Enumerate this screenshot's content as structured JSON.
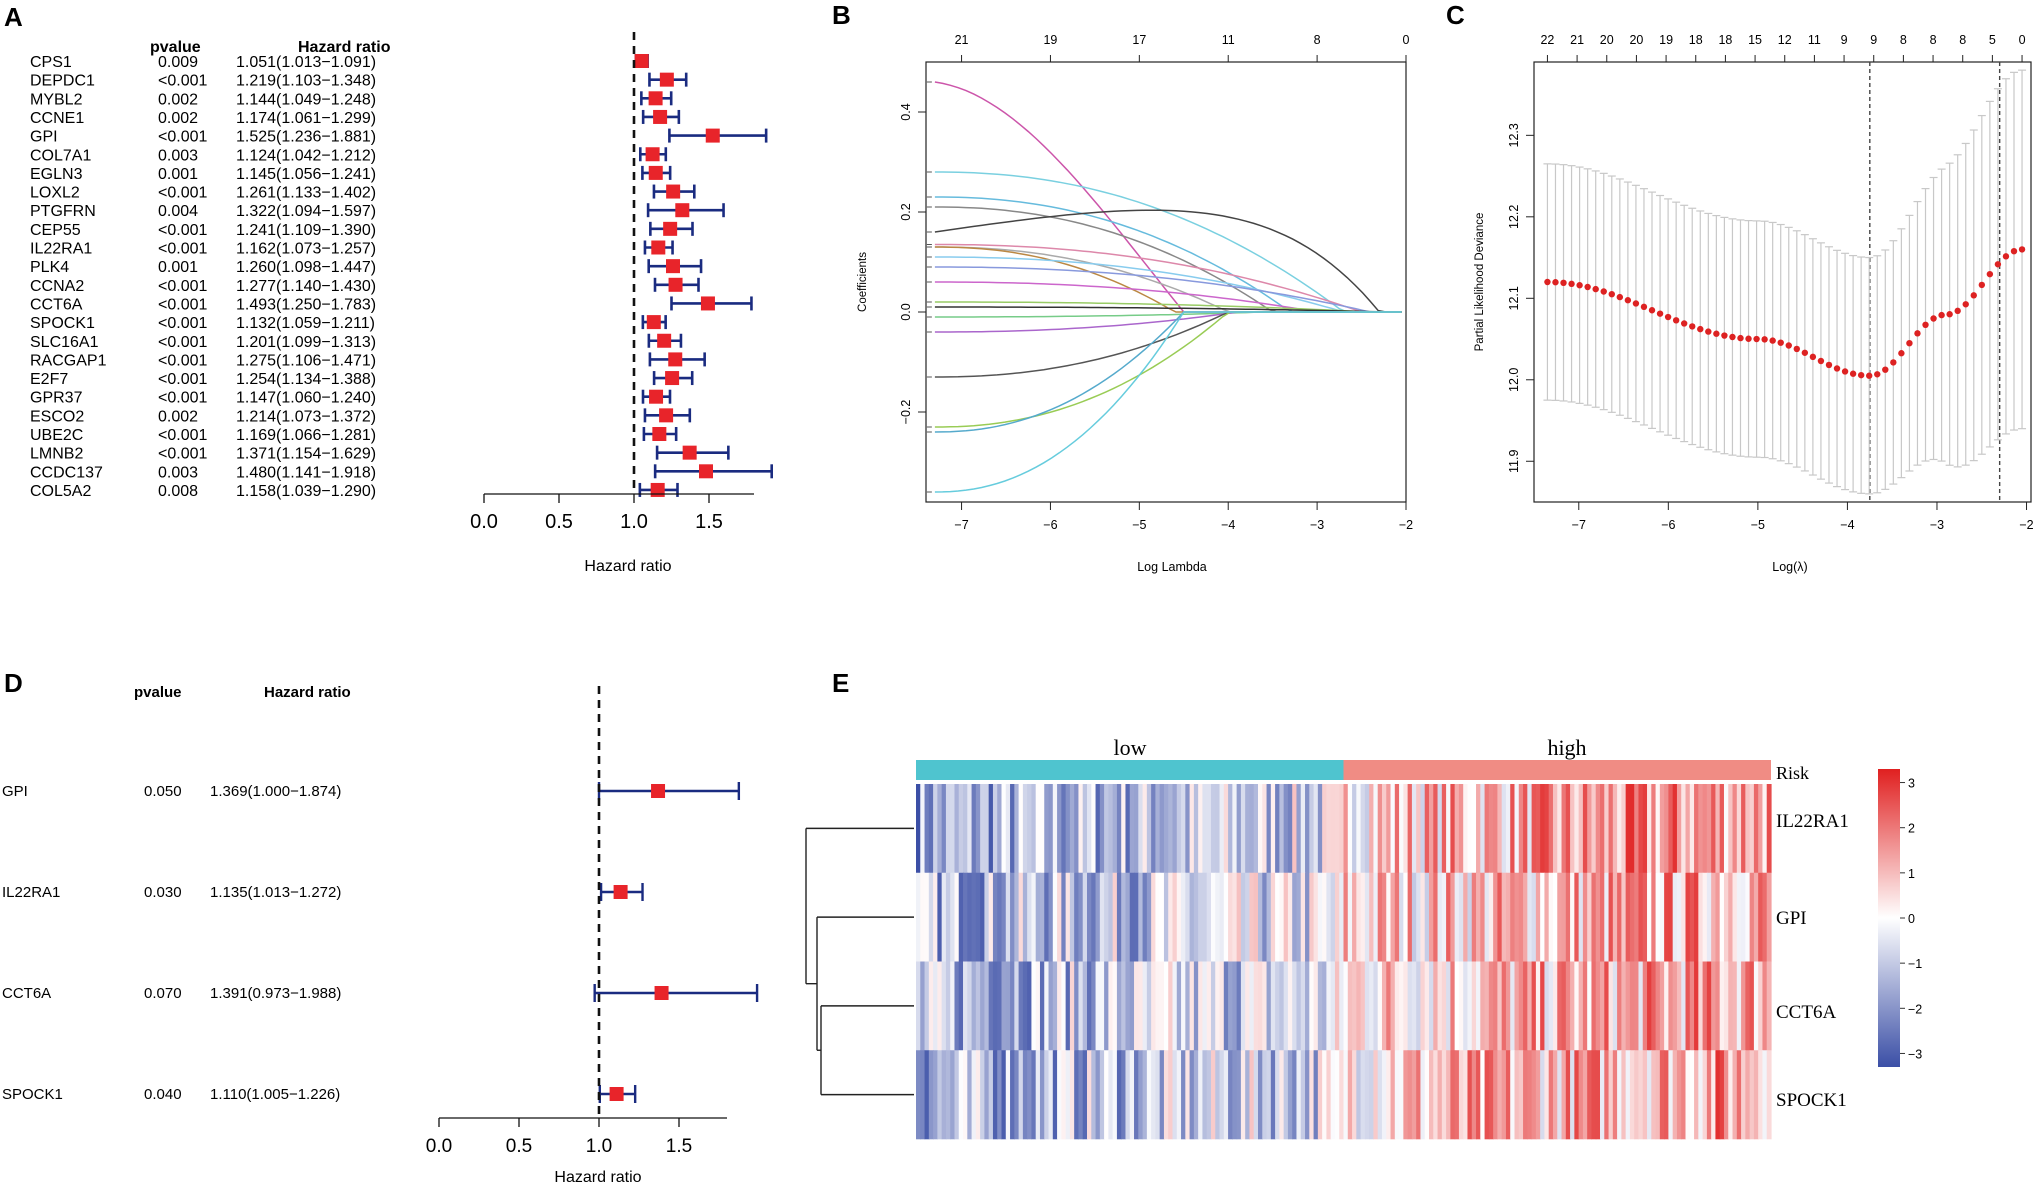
{
  "chart_data": [
    {
      "panel": "A",
      "type": "forest",
      "title": "",
      "col_pvalue": "pvalue",
      "col_hr": "Hazard ratio",
      "xlabel": "Hazard ratio",
      "xlim": [
        0,
        1.8
      ],
      "xticks": [
        "0.0",
        "0.5",
        "1.0",
        "1.5"
      ],
      "reference_line": 1.0,
      "rows": [
        {
          "gene": "CPS1",
          "pvalue": "0.009",
          "hr_text": "1.051(1.013−1.091)",
          "hr": 1.051,
          "lo": 1.013,
          "hi": 1.091
        },
        {
          "gene": "DEPDC1",
          "pvalue": "<0.001",
          "hr_text": "1.219(1.103−1.348)",
          "hr": 1.219,
          "lo": 1.103,
          "hi": 1.348
        },
        {
          "gene": "MYBL2",
          "pvalue": "0.002",
          "hr_text": "1.144(1.049−1.248)",
          "hr": 1.144,
          "lo": 1.049,
          "hi": 1.248
        },
        {
          "gene": "CCNE1",
          "pvalue": "0.002",
          "hr_text": "1.174(1.061−1.299)",
          "hr": 1.174,
          "lo": 1.061,
          "hi": 1.299
        },
        {
          "gene": "GPI",
          "pvalue": "<0.001",
          "hr_text": "1.525(1.236−1.881)",
          "hr": 1.525,
          "lo": 1.236,
          "hi": 1.881
        },
        {
          "gene": "COL7A1",
          "pvalue": "0.003",
          "hr_text": "1.124(1.042−1.212)",
          "hr": 1.124,
          "lo": 1.042,
          "hi": 1.212
        },
        {
          "gene": "EGLN3",
          "pvalue": "0.001",
          "hr_text": "1.145(1.056−1.241)",
          "hr": 1.145,
          "lo": 1.056,
          "hi": 1.241
        },
        {
          "gene": "LOXL2",
          "pvalue": "<0.001",
          "hr_text": "1.261(1.133−1.402)",
          "hr": 1.261,
          "lo": 1.133,
          "hi": 1.402
        },
        {
          "gene": "PTGFRN",
          "pvalue": "0.004",
          "hr_text": "1.322(1.094−1.597)",
          "hr": 1.322,
          "lo": 1.094,
          "hi": 1.597
        },
        {
          "gene": "CEP55",
          "pvalue": "<0.001",
          "hr_text": "1.241(1.109−1.390)",
          "hr": 1.241,
          "lo": 1.109,
          "hi": 1.39
        },
        {
          "gene": "IL22RA1",
          "pvalue": "<0.001",
          "hr_text": "1.162(1.073−1.257)",
          "hr": 1.162,
          "lo": 1.073,
          "hi": 1.257
        },
        {
          "gene": "PLK4",
          "pvalue": "0.001",
          "hr_text": "1.260(1.098−1.447)",
          "hr": 1.26,
          "lo": 1.098,
          "hi": 1.447
        },
        {
          "gene": "CCNA2",
          "pvalue": "<0.001",
          "hr_text": "1.277(1.140−1.430)",
          "hr": 1.277,
          "lo": 1.14,
          "hi": 1.43
        },
        {
          "gene": "CCT6A",
          "pvalue": "<0.001",
          "hr_text": "1.493(1.250−1.783)",
          "hr": 1.493,
          "lo": 1.25,
          "hi": 1.783
        },
        {
          "gene": "SPOCK1",
          "pvalue": "<0.001",
          "hr_text": "1.132(1.059−1.211)",
          "hr": 1.132,
          "lo": 1.059,
          "hi": 1.211
        },
        {
          "gene": "SLC16A1",
          "pvalue": "<0.001",
          "hr_text": "1.201(1.099−1.313)",
          "hr": 1.201,
          "lo": 1.099,
          "hi": 1.313
        },
        {
          "gene": "RACGAP1",
          "pvalue": "<0.001",
          "hr_text": "1.275(1.106−1.471)",
          "hr": 1.275,
          "lo": 1.106,
          "hi": 1.471
        },
        {
          "gene": "E2F7",
          "pvalue": "<0.001",
          "hr_text": "1.254(1.134−1.388)",
          "hr": 1.254,
          "lo": 1.134,
          "hi": 1.388
        },
        {
          "gene": "GPR37",
          "pvalue": "<0.001",
          "hr_text": "1.147(1.060−1.240)",
          "hr": 1.147,
          "lo": 1.06,
          "hi": 1.24
        },
        {
          "gene": "ESCO2",
          "pvalue": "0.002",
          "hr_text": "1.214(1.073−1.372)",
          "hr": 1.214,
          "lo": 1.073,
          "hi": 1.372
        },
        {
          "gene": "UBE2C",
          "pvalue": "<0.001",
          "hr_text": "1.169(1.066−1.281)",
          "hr": 1.169,
          "lo": 1.066,
          "hi": 1.281
        },
        {
          "gene": "LMNB2",
          "pvalue": "<0.001",
          "hr_text": "1.371(1.154−1.629)",
          "hr": 1.371,
          "lo": 1.154,
          "hi": 1.629
        },
        {
          "gene": "CCDC137",
          "pvalue": "0.003",
          "hr_text": "1.480(1.141−1.918)",
          "hr": 1.48,
          "lo": 1.141,
          "hi": 1.918
        },
        {
          "gene": "COL5A2",
          "pvalue": "0.008",
          "hr_text": "1.158(1.039−1.290)",
          "hr": 1.158,
          "lo": 1.039,
          "hi": 1.29
        }
      ]
    },
    {
      "panel": "B",
      "type": "line",
      "title": "",
      "xlabel": "Log Lambda",
      "ylabel": "Coefficients",
      "xlim": [
        -7.4,
        -2.0
      ],
      "ylim": [
        -0.38,
        0.5
      ],
      "xticks": [
        "-7",
        "-6",
        "-5",
        "-4",
        "-3",
        "-2"
      ],
      "yticks": [
        "-0.2",
        "0.0",
        "0.2",
        "0.4"
      ],
      "top_axis": [
        {
          "x": -7,
          "label": "21"
        },
        {
          "x": -6,
          "label": "19"
        },
        {
          "x": -5,
          "label": "17"
        },
        {
          "x": -4,
          "label": "11"
        },
        {
          "x": -3,
          "label": "8"
        },
        {
          "x": -2,
          "label": "0"
        }
      ],
      "series": [
        {
          "color": "#cc55aa",
          "start": 0.46,
          "cross": -4.5,
          "shape": "arc"
        },
        {
          "color": "#7ad0e0",
          "start": 0.28,
          "cross": -2.7,
          "shape": "flat"
        },
        {
          "color": "#66bbdd",
          "start": 0.23,
          "cross": -3.3,
          "shape": "flat"
        },
        {
          "color": "#888888",
          "start": 0.21,
          "cross": -3.5,
          "shape": "flat"
        },
        {
          "color": "#444444",
          "start": 0.16,
          "cross": -2.3,
          "shape": "hump"
        },
        {
          "color": "#dd88aa",
          "start": 0.135,
          "cross": -2.5,
          "shape": "flat"
        },
        {
          "color": "#aaaaaa",
          "start": 0.13,
          "cross": -4.0,
          "shape": "flat"
        },
        {
          "color": "#bb8844",
          "start": 0.13,
          "cross": -4.6,
          "shape": "flat"
        },
        {
          "color": "#88ccee",
          "start": 0.11,
          "cross": -2.7,
          "shape": "flat"
        },
        {
          "color": "#8899dd",
          "start": 0.09,
          "cross": -2.4,
          "shape": "flat"
        },
        {
          "color": "#cc66cc",
          "start": 0.06,
          "cross": -3.0,
          "shape": "flat"
        },
        {
          "color": "#99cc66",
          "start": 0.02,
          "cross": -2.4,
          "shape": "flat"
        },
        {
          "color": "#333333",
          "start": 0.01,
          "cross": -2.2,
          "shape": "flat"
        },
        {
          "color": "#77cc88",
          "start": -0.01,
          "cross": -3.6,
          "shape": "flat"
        },
        {
          "color": "#aa66cc",
          "start": -0.04,
          "cross": -3.9,
          "shape": "flat"
        },
        {
          "color": "#555555",
          "start": -0.13,
          "cross": -4.0,
          "shape": "flat"
        },
        {
          "color": "#99cc55",
          "start": -0.23,
          "cross": -4.0,
          "shape": "flat"
        },
        {
          "color": "#55aacc",
          "start": -0.24,
          "cross": -4.5,
          "shape": "flat"
        },
        {
          "color": "#66ccdd",
          "start": -0.36,
          "cross": -4.5,
          "shape": "flat"
        }
      ]
    },
    {
      "panel": "C",
      "type": "scatter",
      "title": "",
      "xlabel": "Log(λ)",
      "ylabel": "Partial Likelihood Deviance",
      "xlim": [
        -7.5,
        -1.95
      ],
      "ylim": [
        11.85,
        12.39
      ],
      "xticks": [
        "-7",
        "-6",
        "-5",
        "-4",
        "-3",
        "-2"
      ],
      "yticks": [
        "11.9",
        "12.0",
        "12.1",
        "12.2",
        "12.3"
      ],
      "top_axis_labels": [
        "22",
        "21",
        "20",
        "20",
        "19",
        "18",
        "18",
        "15",
        "12",
        "11",
        "9",
        "9",
        "8",
        "8",
        "8",
        "5",
        "0"
      ],
      "vlines": [
        -3.75,
        -2.3
      ],
      "points_x_start": -7.35,
      "points_x_end": -2.05,
      "points_count": 60,
      "curve_key_points": [
        {
          "x": -7.35,
          "y": 12.12
        },
        {
          "x": -5.0,
          "y": 12.05
        },
        {
          "x": -3.75,
          "y": 12.005
        },
        {
          "x": -2.9,
          "y": 12.08
        },
        {
          "x": -2.05,
          "y": 12.16
        }
      ],
      "error_half_width": [
        {
          "x": -7.35,
          "y": 0.145
        },
        {
          "x": -3.75,
          "y": 0.145
        },
        {
          "x": -2.05,
          "y": 0.22
        }
      ]
    },
    {
      "panel": "D",
      "type": "forest",
      "title": "",
      "col_pvalue": "pvalue",
      "col_hr": "Hazard ratio",
      "xlabel": "Hazard ratio",
      "xlim": [
        0,
        1.8
      ],
      "xticks": [
        "0.0",
        "0.5",
        "1.0",
        "1.5"
      ],
      "reference_line": 1.0,
      "rows": [
        {
          "gene": "GPI",
          "pvalue": "0.050",
          "hr_text": "1.369(1.000−1.874)",
          "hr": 1.369,
          "lo": 1.0,
          "hi": 1.874
        },
        {
          "gene": "IL22RA1",
          "pvalue": "0.030",
          "hr_text": "1.135(1.013−1.272)",
          "hr": 1.135,
          "lo": 1.013,
          "hi": 1.272
        },
        {
          "gene": "CCT6A",
          "pvalue": "0.070",
          "hr_text": "1.391(0.973−1.988)",
          "hr": 1.391,
          "lo": 0.973,
          "hi": 1.988
        },
        {
          "gene": "SPOCK1",
          "pvalue": "0.040",
          "hr_text": "1.110(1.005−1.226)",
          "hr": 1.11,
          "lo": 1.005,
          "hi": 1.226
        }
      ]
    },
    {
      "panel": "E",
      "type": "heatmap",
      "title": "",
      "groups": [
        {
          "label": "low",
          "color": "#4fc4cf"
        },
        {
          "label": "high",
          "color": "#f08c84"
        }
      ],
      "annotation_label": "Risk",
      "rows": [
        "IL22RA1",
        "GPI",
        "CCT6A",
        "SPOCK1"
      ],
      "row_bias": [
        0.55,
        0.45,
        0.45,
        0.5
      ],
      "columns_per_group": 100,
      "color_low": "#3b4fa6",
      "color_mid": "#ffffff",
      "color_high": "#e02020",
      "legend_ticks": [
        "3",
        "2",
        "1",
        "0",
        "−1",
        "−2",
        "−3"
      ],
      "legend_range": [
        -3.3,
        3.3
      ]
    }
  ],
  "panels": {
    "A": "A",
    "B": "B",
    "C": "C",
    "D": "D",
    "E": "E"
  }
}
